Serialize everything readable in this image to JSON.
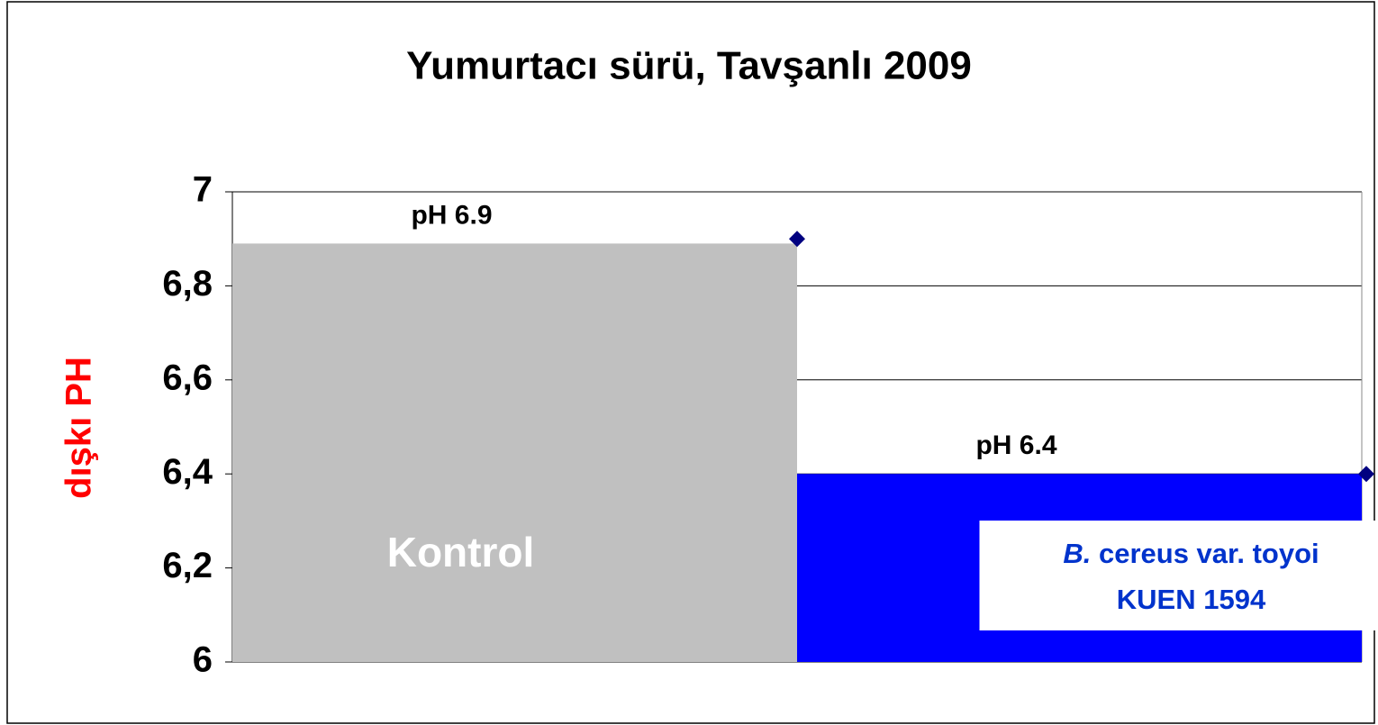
{
  "chart_data": {
    "type": "bar",
    "title": "Yumurtacı sürü, Tavşanlı 2009",
    "y_label": "dışkı PH",
    "categories": [
      {
        "text": "Kontrol"
      },
      {
        "italic": "B.",
        "text": "cereus var. toyoi",
        "line2": "KUEN 1594"
      }
    ],
    "values": [
      6.89,
      6.4
    ],
    "value_labels": [
      "pH 6.9",
      "pH 6.4"
    ],
    "colors": [
      "#c0c0c0",
      "#0000ff"
    ],
    "markers": {
      "color": "#000080",
      "values": [
        6.9,
        6.4
      ]
    },
    "ylim": [
      6,
      7
    ],
    "yticks": [
      6,
      {
        "value": 6.2,
        "label": "6,2"
      },
      {
        "value": 6.4,
        "label": "6,4"
      },
      {
        "value": 6.6,
        "label": "6,6"
      },
      {
        "value": 6.8,
        "label": "6,8"
      },
      7
    ],
    "grid": true
  }
}
